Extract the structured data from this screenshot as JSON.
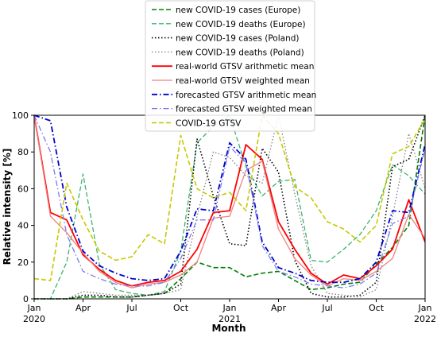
{
  "chart_data": {
    "type": "line",
    "xlabel": "Month",
    "ylabel": "Relative intensity [%]",
    "ylim": [
      0,
      100
    ],
    "grid": false,
    "legend_position": "top-center",
    "x_ticks": [
      {
        "m": 0,
        "line1": "Jan",
        "line2": "2020"
      },
      {
        "m": 3,
        "line1": "Apr",
        "line2": ""
      },
      {
        "m": 6,
        "line1": "Jul",
        "line2": ""
      },
      {
        "m": 9,
        "line1": "Oct",
        "line2": ""
      },
      {
        "m": 12,
        "line1": "Jan",
        "line2": "2021"
      },
      {
        "m": 15,
        "line1": "Apr",
        "line2": ""
      },
      {
        "m": 18,
        "line1": "Jul",
        "line2": ""
      },
      {
        "m": 21,
        "line1": "Oct",
        "line2": ""
      },
      {
        "m": 24,
        "line1": "Jan",
        "line2": "2022"
      }
    ],
    "y_ticks": [
      "0",
      "20",
      "40",
      "60",
      "80",
      "100"
    ],
    "x_months": [
      "Jan 2020",
      "Feb 2020",
      "Mar 2020",
      "Apr 2020",
      "May 2020",
      "Jun 2020",
      "Jul 2020",
      "Aug 2020",
      "Sep 2020",
      "Oct 2020",
      "Nov 2020",
      "Dec 2020",
      "Jan 2021",
      "Feb 2021",
      "Mar 2021",
      "Apr 2021",
      "May 2021",
      "Jun 2021",
      "Jul 2021",
      "Aug 2021",
      "Sep 2021",
      "Oct 2021",
      "Nov 2021",
      "Dec 2021",
      "Jan 2022"
    ],
    "series": [
      {
        "name": "new COVID-19 cases (Europe)",
        "color": "#008000",
        "dash": "dashed",
        "width": 1.6,
        "values": [
          0,
          0,
          0,
          1,
          1,
          1,
          1,
          2,
          3,
          11,
          20,
          17,
          17,
          12,
          14,
          15,
          10,
          5,
          6,
          8,
          9,
          19,
          28,
          40,
          100
        ]
      },
      {
        "name": "new COVID-19 deaths (Europe)",
        "color": "#3cb371",
        "dash": "dashed",
        "width": 1.3,
        "values": [
          0,
          0,
          20,
          68,
          19,
          5,
          3,
          2,
          4,
          26,
          85,
          94,
          100,
          72,
          56,
          64,
          65,
          21,
          20,
          27,
          35,
          48,
          73,
          67,
          57
        ]
      },
      {
        "name": "new COVID-19 cases (Poland)",
        "color": "#000000",
        "dash": "dotted",
        "width": 1.6,
        "values": [
          0,
          0,
          0,
          2,
          2,
          1,
          1,
          2,
          3,
          8,
          87,
          56,
          30,
          29,
          82,
          69,
          21,
          3,
          1,
          1,
          2,
          9,
          72,
          76,
          100
        ]
      },
      {
        "name": "new COVID-19 deaths (Poland)",
        "color": "#808080",
        "dash": "dotted",
        "width": 1.3,
        "values": [
          0,
          0,
          0,
          4,
          3,
          2,
          2,
          2,
          3,
          5,
          45,
          80,
          77,
          67,
          63,
          100,
          57,
          18,
          3,
          2,
          1,
          5,
          45,
          90,
          60
        ]
      },
      {
        "name": "real-world GTSV arithmetic mean",
        "color": "#ff0000",
        "dash": "solid",
        "width": 1.8,
        "values": [
          100,
          47,
          43,
          24,
          16,
          10,
          7,
          9,
          10,
          15,
          27,
          47,
          48,
          84,
          76,
          42,
          27,
          14,
          8,
          13,
          11,
          18,
          27,
          54,
          31
        ]
      },
      {
        "name": "real-world GTSV weighted mean",
        "color": "#f08080",
        "dash": "solid",
        "width": 1.3,
        "values": [
          100,
          45,
          36,
          25,
          15,
          9,
          6,
          8,
          9,
          13,
          20,
          44,
          45,
          70,
          75,
          38,
          22,
          13,
          7,
          11,
          10,
          15,
          22,
          46,
          33
        ]
      },
      {
        "name": "forecasted GTSV arithmetic mean",
        "color": "#0000cd",
        "dash": "dashdot",
        "width": 1.8,
        "values": [
          100,
          97,
          50,
          26,
          18,
          14,
          11,
          10,
          11,
          26,
          49,
          48,
          85,
          76,
          31,
          17,
          14,
          10,
          9,
          9,
          11,
          20,
          48,
          47,
          84
        ]
      },
      {
        "name": "forecasted GTSV weighted mean",
        "color": "#7b7bee",
        "dash": "dashdot",
        "width": 1.3,
        "values": [
          100,
          80,
          35,
          15,
          11,
          8,
          7,
          7,
          9,
          22,
          43,
          43,
          83,
          74,
          29,
          15,
          12,
          8,
          7,
          6,
          8,
          14,
          41,
          45,
          82
        ]
      },
      {
        "name": "COVID-19 GTSV",
        "color": "#c8c800",
        "dash": "dashed",
        "width": 1.6,
        "values": [
          11,
          10,
          63,
          43,
          26,
          21,
          23,
          35,
          30,
          89,
          60,
          55,
          58,
          48,
          100,
          90,
          61,
          55,
          42,
          38,
          31,
          40,
          79,
          83,
          98
        ]
      }
    ]
  }
}
